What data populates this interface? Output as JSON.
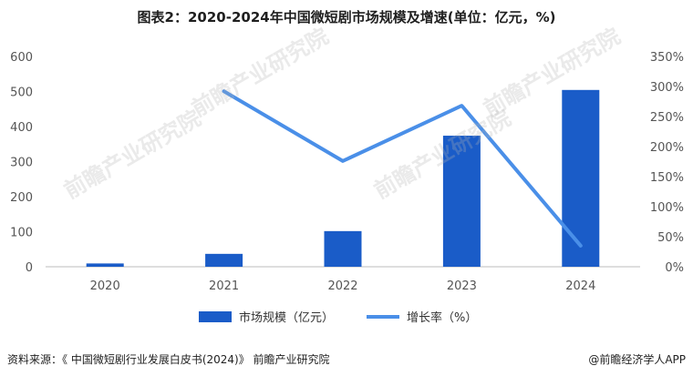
{
  "title": "图表2：2020-2024年中国微短剧市场规模及增速(单位：亿元，%)",
  "source": "资料来源：《 中国微短剧行业发展白皮书(2024)》 前瞻产业研究院",
  "credit": "@前瞻经济学人APP",
  "watermark": "前瞻产业研究院",
  "chart_data": {
    "type": "bar",
    "categories": [
      "2020",
      "2021",
      "2022",
      "2023",
      "2024"
    ],
    "series": [
      {
        "name": "市场规模（亿元）",
        "type": "bar",
        "axis": "left",
        "values": [
          9.4,
          36.8,
          101.7,
          373.9,
          504.4
        ],
        "color": "#1a5cc8"
      },
      {
        "name": "增长率（%）",
        "type": "line",
        "axis": "right",
        "values": [
          null,
          292,
          176,
          268,
          35
        ],
        "color": "#4a8fe8"
      }
    ],
    "y_left": {
      "min": 0,
      "max": 600,
      "ticks": [
        "0",
        "100",
        "200",
        "300",
        "400",
        "500",
        "600"
      ]
    },
    "y_right": {
      "min": 0,
      "max": 350,
      "ticks": [
        "0%",
        "50%",
        "100%",
        "150%",
        "200%",
        "250%",
        "300%",
        "350%"
      ]
    },
    "grid": false,
    "legend_position": "bottom"
  }
}
